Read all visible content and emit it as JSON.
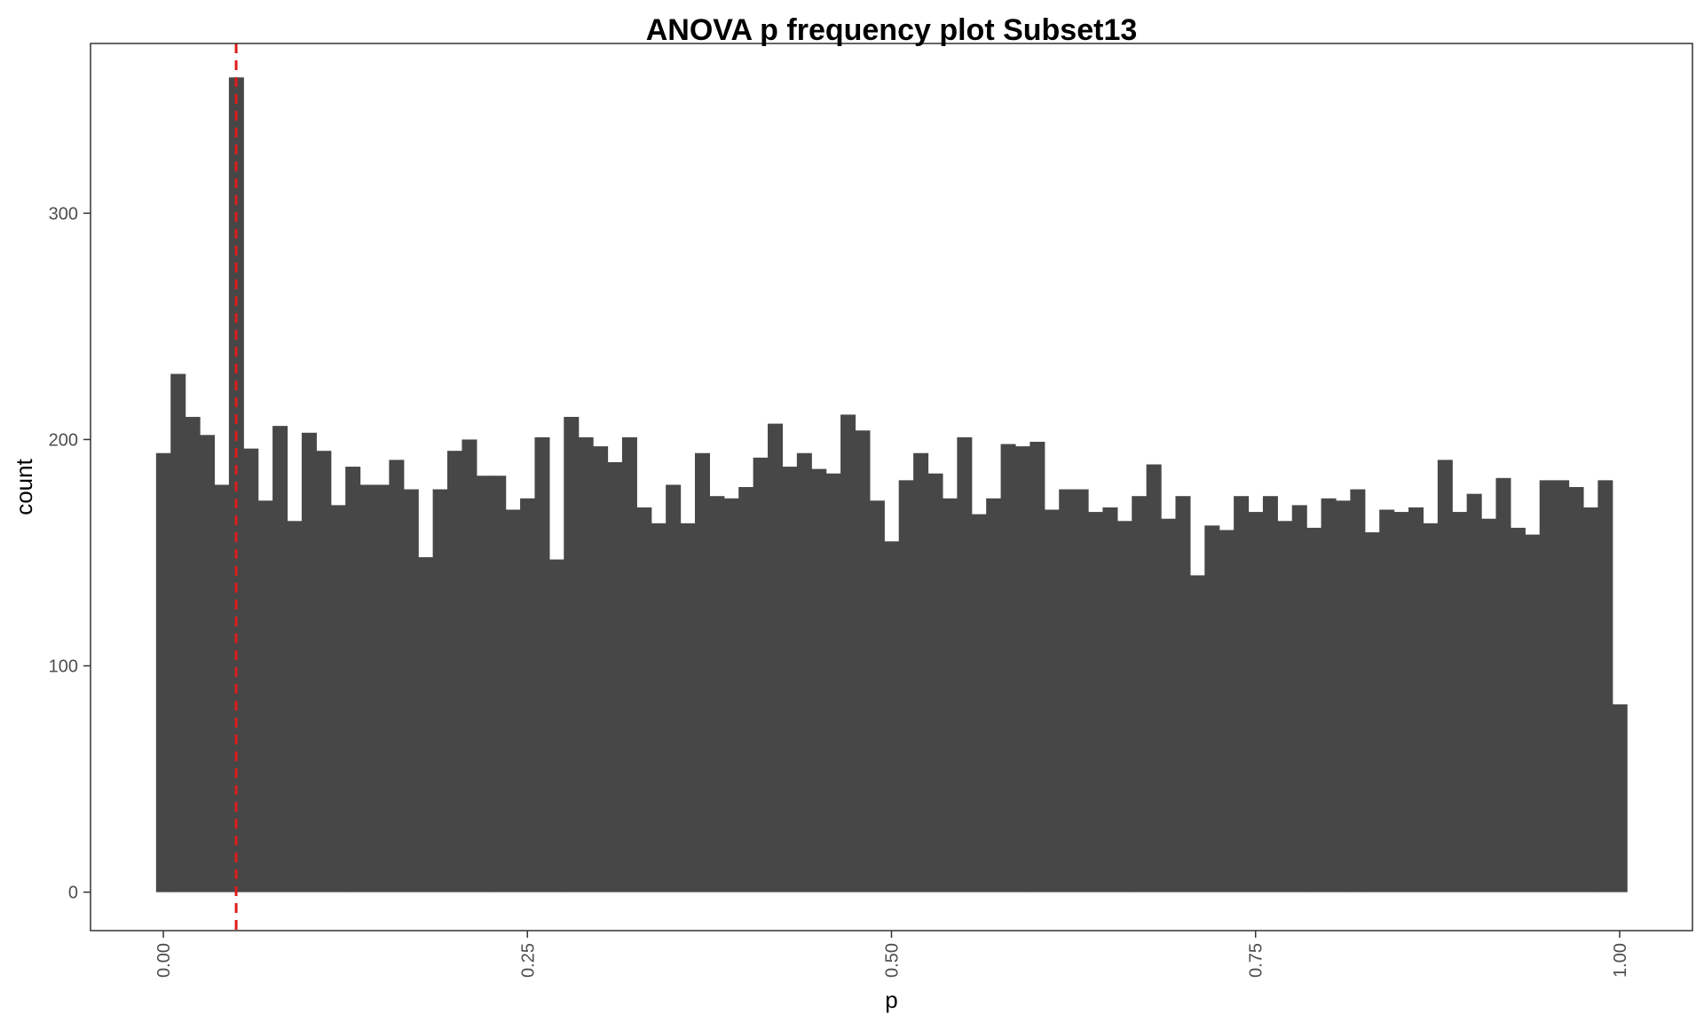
{
  "chart_data": {
    "type": "bar",
    "title": "ANOVA p frequency plot Subset13",
    "xlabel": "p",
    "ylabel": "count",
    "bin_width": 0.01,
    "x_start": -0.005,
    "xlim": [
      -0.05,
      1.05
    ],
    "ylim": [
      -17,
      375
    ],
    "x_ticks": [
      "0.00",
      "0.25",
      "0.50",
      "0.75",
      "1.00"
    ],
    "x_tick_values": [
      0,
      0.25,
      0.5,
      0.75,
      1.0
    ],
    "y_ticks": [
      "0",
      "100",
      "200",
      "300"
    ],
    "y_tick_values": [
      0,
      100,
      200,
      300
    ],
    "vline_x": 0.05,
    "bar_color": "#474747",
    "vline_color": "#dd1c1c",
    "grid": false,
    "legend": "none",
    "values": [
      194,
      229,
      210,
      202,
      180,
      360,
      196,
      173,
      206,
      164,
      203,
      195,
      171,
      188,
      180,
      180,
      191,
      178,
      148,
      178,
      195,
      200,
      184,
      184,
      169,
      174,
      201,
      147,
      210,
      201,
      197,
      190,
      201,
      170,
      163,
      180,
      163,
      194,
      175,
      174,
      179,
      192,
      207,
      188,
      194,
      187,
      185,
      211,
      204,
      173,
      155,
      182,
      194,
      185,
      174,
      201,
      167,
      174,
      198,
      197,
      199,
      169,
      178,
      178,
      168,
      170,
      164,
      175,
      189,
      165,
      175,
      140,
      162,
      160,
      175,
      168,
      175,
      164,
      171,
      161,
      174,
      173,
      178,
      159,
      169,
      168,
      170,
      163,
      191,
      168,
      176,
      165,
      183,
      161,
      158,
      182,
      182,
      179,
      170,
      182,
      83
    ]
  }
}
